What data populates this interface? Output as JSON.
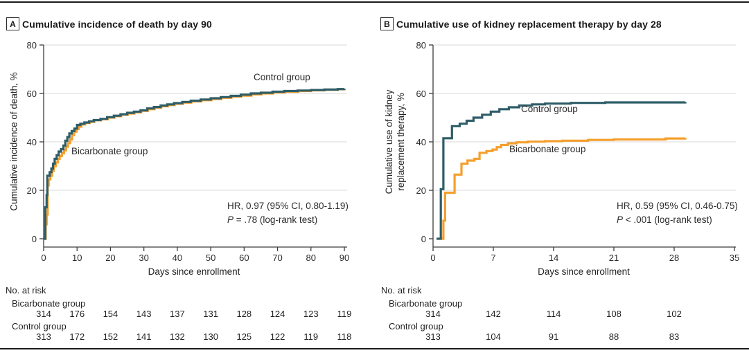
{
  "style": {
    "control_color": "#2E5D68",
    "bicarbonate_color": "#F49F2D",
    "grid_color": "#D9D9D9",
    "axis_color": "#3C3C3C",
    "rule_color": "#1A1A1A"
  },
  "chart_data": [
    {
      "type": "line",
      "step": true,
      "panel_label": "A",
      "title": "Cumulative incidence of death by day 90",
      "xlabel": "Days since enrollment",
      "ylabel_lines": [
        "Cumulative incidence of death, %"
      ],
      "xlim": [
        0,
        90
      ],
      "ylim": [
        0,
        80
      ],
      "xticks": [
        0,
        10,
        20,
        30,
        40,
        50,
        60,
        70,
        80,
        90
      ],
      "yticks": [
        0,
        20,
        40,
        60,
        80
      ],
      "grid": "horizontal",
      "legend_position": "inline-curve-labels",
      "series": [
        {
          "name": "Control group",
          "color": "#2E5D68",
          "points": [
            [
              0,
              0
            ],
            [
              0.5,
              13
            ],
            [
              0.9,
              18
            ],
            [
              1.1,
              26
            ],
            [
              1.8,
              27.5
            ],
            [
              2.3,
              29
            ],
            [
              2.8,
              31
            ],
            [
              3.3,
              33
            ],
            [
              3.9,
              34.5
            ],
            [
              4.5,
              36
            ],
            [
              5.2,
              37
            ],
            [
              5.9,
              38.5
            ],
            [
              6.5,
              40.5
            ],
            [
              7.1,
              42
            ],
            [
              7.7,
              43.5
            ],
            [
              8.4,
              44.5
            ],
            [
              9.2,
              45.5
            ],
            [
              10,
              47
            ],
            [
              11,
              47.5
            ],
            [
              12.2,
              48
            ],
            [
              13.6,
              48.5
            ],
            [
              15,
              49
            ],
            [
              17,
              49.5
            ],
            [
              19,
              50.2
            ],
            [
              21,
              50.8
            ],
            [
              23,
              51.4
            ],
            [
              25,
              52
            ],
            [
              27,
              52.5
            ],
            [
              29,
              53
            ],
            [
              31,
              53.8
            ],
            [
              33,
              54.4
            ],
            [
              35,
              55
            ],
            [
              37,
              55.5
            ],
            [
              39,
              56
            ],
            [
              41.5,
              56.5
            ],
            [
              44,
              57
            ],
            [
              47,
              57.5
            ],
            [
              50,
              58
            ],
            [
              53,
              58.5
            ],
            [
              56,
              59
            ],
            [
              59,
              59.5
            ],
            [
              62,
              60
            ],
            [
              65,
              60.3
            ],
            [
              68.5,
              60.7
            ],
            [
              72,
              61
            ],
            [
              76,
              61.2
            ],
            [
              80,
              61.4
            ],
            [
              84,
              61.6
            ],
            [
              88,
              61.8
            ],
            [
              90,
              61.9
            ]
          ]
        },
        {
          "name": "Bicarbonate group",
          "color": "#F49F2D",
          "points": [
            [
              0,
              0
            ],
            [
              0.6,
              6
            ],
            [
              0.9,
              10
            ],
            [
              1.2,
              22
            ],
            [
              1.5,
              24.5
            ],
            [
              2,
              26
            ],
            [
              2.5,
              28
            ],
            [
              3,
              30
            ],
            [
              3.6,
              31.5
            ],
            [
              4.2,
              33
            ],
            [
              4.8,
              34.2
            ],
            [
              5.5,
              35.3
            ],
            [
              6.1,
              36.5
            ],
            [
              6.7,
              38
            ],
            [
              7.3,
              39.5
            ],
            [
              7.9,
              41
            ],
            [
              8.5,
              42.8
            ],
            [
              9.1,
              44.2
            ],
            [
              9.8,
              45.3
            ],
            [
              10.5,
              46.3
            ],
            [
              11.3,
              47.2
            ],
            [
              12.4,
              47.8
            ],
            [
              13.8,
              48.3
            ],
            [
              15.2,
              48.9
            ],
            [
              17.2,
              49.4
            ],
            [
              19.2,
              50
            ],
            [
              21.2,
              50.6
            ],
            [
              23.2,
              51.2
            ],
            [
              25.2,
              51.7
            ],
            [
              27.2,
              52.2
            ],
            [
              29.2,
              52.8
            ],
            [
              31.2,
              53.5
            ],
            [
              33.2,
              54.1
            ],
            [
              35.2,
              54.7
            ],
            [
              37.2,
              55.2
            ],
            [
              39.2,
              55.7
            ],
            [
              41.7,
              56.2
            ],
            [
              44.2,
              56.7
            ],
            [
              47.2,
              57.2
            ],
            [
              50.2,
              57.7
            ],
            [
              53.2,
              58.2
            ],
            [
              56.2,
              58.7
            ],
            [
              59.2,
              59.1
            ],
            [
              62.2,
              59.6
            ],
            [
              65.2,
              60
            ],
            [
              68.7,
              60.4
            ],
            [
              72.2,
              60.7
            ],
            [
              76.2,
              61
            ],
            [
              80,
              61.3
            ],
            [
              84.2,
              61.5
            ],
            [
              88,
              61.7
            ],
            [
              90,
              61.9
            ]
          ]
        }
      ],
      "annotations": {
        "hr": "HR, 0.97 (95% CI, 0.80-1.19)",
        "p_italic": "P",
        "p_rest": " = .78 (log-rank test)"
      },
      "no_at_risk": {
        "label": "No. at risk",
        "rows": [
          {
            "name": "Bicarbonate group",
            "values": [
              314,
              176,
              154,
              143,
              137,
              131,
              128,
              124,
              123,
              119
            ]
          },
          {
            "name": "Control group",
            "values": [
              313,
              172,
              152,
              141,
              132,
              130,
              125,
              122,
              119,
              118
            ]
          }
        ]
      }
    },
    {
      "type": "line",
      "step": true,
      "panel_label": "B",
      "title": "Cumulative use of kidney replacement therapy by day 28",
      "xlabel": "Days since enrollment",
      "ylabel_lines": [
        "Cumulative use of kidney",
        "replacement therapy, %"
      ],
      "xlim": [
        0,
        35
      ],
      "ylim": [
        0,
        80
      ],
      "xticks": [
        0,
        7,
        14,
        21,
        28,
        35
      ],
      "yticks": [
        0,
        20,
        40,
        60,
        80
      ],
      "grid": "horizontal",
      "legend_position": "inline-curve-labels",
      "series": [
        {
          "name": "Control group",
          "color": "#2E5D68",
          "points": [
            [
              0.4,
              0
            ],
            [
              0.9,
              20.5
            ],
            [
              1.2,
              41.5
            ],
            [
              2.2,
              46.5
            ],
            [
              3.1,
              47.5
            ],
            [
              3.9,
              48.7
            ],
            [
              4.7,
              50
            ],
            [
              5.7,
              51.2
            ],
            [
              6.7,
              52.5
            ],
            [
              7.7,
              53.5
            ],
            [
              8.8,
              54.3
            ],
            [
              10,
              55
            ],
            [
              11.5,
              55.5
            ],
            [
              13,
              55.8
            ],
            [
              16,
              56.1
            ],
            [
              20,
              56.3
            ],
            [
              29.3,
              56.4
            ]
          ]
        },
        {
          "name": "Bicarbonate group",
          "color": "#F49F2D",
          "points": [
            [
              1,
              0
            ],
            [
              1.2,
              7.5
            ],
            [
              1.4,
              19
            ],
            [
              2.5,
              26.5
            ],
            [
              3.3,
              31
            ],
            [
              4,
              32.3
            ],
            [
              4.8,
              33
            ],
            [
              5.4,
              35.5
            ],
            [
              6.2,
              36.2
            ],
            [
              6.9,
              36.8
            ],
            [
              7.4,
              37.8
            ],
            [
              7.9,
              38.7
            ],
            [
              8.7,
              39.4
            ],
            [
              9.7,
              39.8
            ],
            [
              11,
              40.1
            ],
            [
              13,
              40.3
            ],
            [
              15,
              40.5
            ],
            [
              18,
              40.8
            ],
            [
              21,
              41
            ],
            [
              27,
              41.4
            ],
            [
              29.3,
              41.5
            ]
          ]
        }
      ],
      "annotations": {
        "hr": "HR, 0.59 (95% CI, 0.46-0.75)",
        "p_italic": "P",
        "p_rest": " < .001 (log-rank test)"
      },
      "no_at_risk": {
        "label": "No. at risk",
        "rows": [
          {
            "name": "Bicarbonate group",
            "values": [
              314,
              142,
              114,
              108,
              102
            ]
          },
          {
            "name": "Control group",
            "values": [
              313,
              104,
              91,
              88,
              83
            ]
          }
        ]
      }
    }
  ]
}
